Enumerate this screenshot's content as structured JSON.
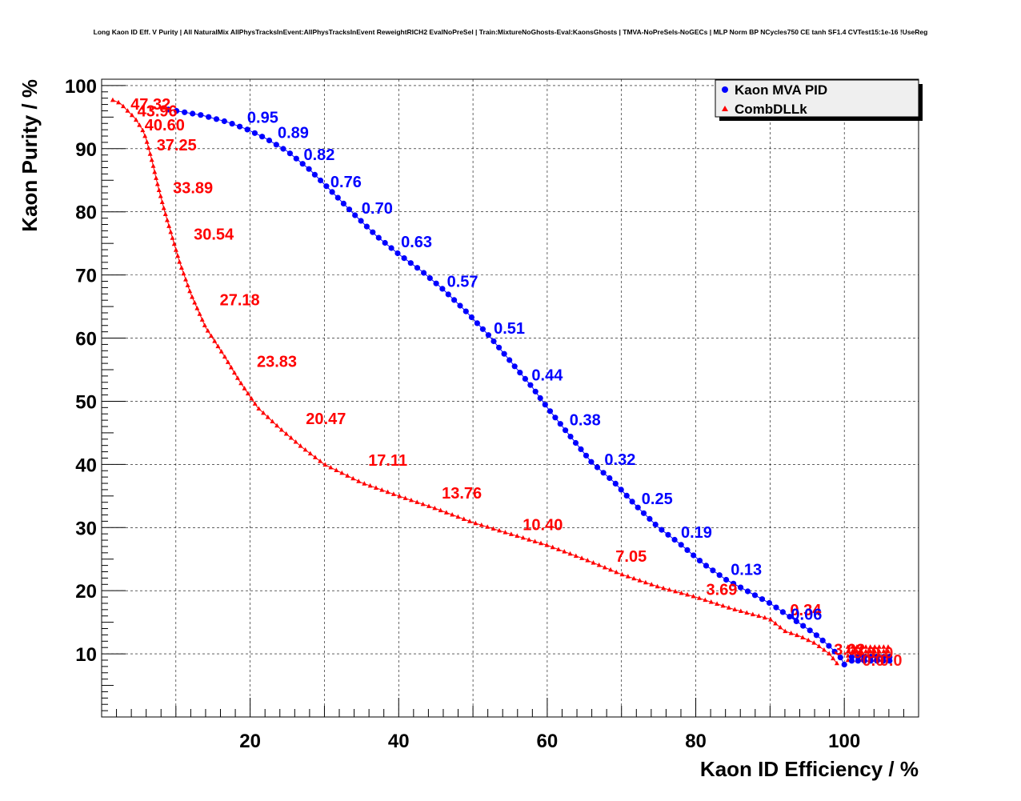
{
  "chart_data": {
    "type": "scatter",
    "title": "Long Kaon ID Eff. V Purity | All NaturalMix AllPhysTracksInEvent:AllPhysTracksInEvent ReweightRICH2 EvalNoPreSel | Train:MixtureNoGhosts-Eval:KaonsGhosts | TMVA-NoPreSels-NoGECs | MLP Norm BP NCycles750 CE tanh SF1.4 CVTest15:1e-16 !UseReg",
    "xlabel": "Kaon ID Efficiency / %",
    "ylabel": "Kaon Purity / %",
    "xlim": [
      0,
      110
    ],
    "ylim": [
      0,
      101
    ],
    "x_ticks": [
      "20",
      "40",
      "60",
      "80",
      "100"
    ],
    "x_tick_values": [
      20,
      40,
      60,
      80,
      100
    ],
    "y_ticks": [
      "10",
      "20",
      "30",
      "40",
      "50",
      "60",
      "70",
      "80",
      "90",
      "100"
    ],
    "y_tick_values": [
      10,
      20,
      30,
      40,
      50,
      60,
      70,
      80,
      90,
      100
    ],
    "grid": true,
    "legend_position": "top-right",
    "colors": {
      "mva": "#0000ff",
      "dll": "#ff0000",
      "frame": "#000000",
      "grid": "#000000"
    },
    "series": [
      {
        "name": "Kaon MVA PID",
        "marker": "circle",
        "curve": [
          [
            9,
            96.2
          ],
          [
            13.5,
            95.3
          ],
          [
            17,
            94.2
          ],
          [
            19.5,
            93.1
          ],
          [
            22,
            91.7
          ],
          [
            25,
            89.6
          ],
          [
            28,
            86.7
          ],
          [
            31,
            83.2
          ],
          [
            34,
            79.6
          ],
          [
            37,
            76.2
          ],
          [
            40,
            73.3
          ],
          [
            43,
            70.7
          ],
          [
            46,
            67.7
          ],
          [
            49,
            64.3
          ],
          [
            52,
            60.6
          ],
          [
            55,
            56.4
          ],
          [
            58,
            52.2
          ],
          [
            60,
            49
          ],
          [
            63,
            44.6
          ],
          [
            66,
            40.3
          ],
          [
            69,
            37.2
          ],
          [
            72,
            33.4
          ],
          [
            75,
            30
          ],
          [
            78,
            27.3
          ],
          [
            81,
            24.3
          ],
          [
            84,
            21.8
          ],
          [
            87,
            19.9
          ],
          [
            90,
            18
          ],
          [
            93,
            15.6
          ],
          [
            96,
            13.2
          ],
          [
            98,
            11.2
          ],
          [
            99.5,
            9.4
          ],
          [
            100,
            8.3
          ]
        ],
        "labels": [
          {
            "text": "0.95",
            "x": 19.6,
            "y": 95.0
          },
          {
            "text": "0.89",
            "x": 23.7,
            "y": 92.6
          },
          {
            "text": "0.82",
            "x": 27.2,
            "y": 89.1
          },
          {
            "text": "0.76",
            "x": 30.8,
            "y": 84.8
          },
          {
            "text": "0.70",
            "x": 35.0,
            "y": 80.6
          },
          {
            "text": "0.63",
            "x": 40.3,
            "y": 75.3
          },
          {
            "text": "0.57",
            "x": 46.5,
            "y": 69.0
          },
          {
            "text": "0.51",
            "x": 52.8,
            "y": 61.6
          },
          {
            "text": "0.44",
            "x": 57.9,
            "y": 54.2
          },
          {
            "text": "0.38",
            "x": 63.0,
            "y": 47.1
          },
          {
            "text": "0.32",
            "x": 67.7,
            "y": 40.8
          },
          {
            "text": "0.25",
            "x": 72.7,
            "y": 34.6
          },
          {
            "text": "0.19",
            "x": 78.0,
            "y": 29.3
          },
          {
            "text": "0.13",
            "x": 84.7,
            "y": 23.4
          },
          {
            "text": "0.06",
            "x": 92.8,
            "y": 16.3
          }
        ]
      },
      {
        "name": "CombDLLk",
        "marker": "triangle",
        "curve": [
          [
            1.5,
            97.7
          ],
          [
            2.5,
            97.2
          ],
          [
            3.5,
            96
          ],
          [
            4.5,
            94.8
          ],
          [
            5.5,
            93
          ],
          [
            6,
            91.5
          ],
          [
            6.8,
            88
          ],
          [
            7.6,
            84
          ],
          [
            8.5,
            80
          ],
          [
            9.5,
            76
          ],
          [
            10.5,
            72
          ],
          [
            12,
            67
          ],
          [
            14,
            61.7
          ],
          [
            16.5,
            57.2
          ],
          [
            18.5,
            53.3
          ],
          [
            21,
            49
          ],
          [
            24,
            45.7
          ],
          [
            27,
            42.7
          ],
          [
            30,
            40
          ],
          [
            35,
            37.1
          ],
          [
            40,
            35
          ],
          [
            45,
            33
          ],
          [
            50,
            30.8
          ],
          [
            55,
            29
          ],
          [
            60,
            27.2
          ],
          [
            65,
            25
          ],
          [
            70,
            22.6
          ],
          [
            75,
            20.6
          ],
          [
            80,
            19
          ],
          [
            85,
            17.1
          ],
          [
            90,
            15.5
          ],
          [
            92,
            13.6
          ],
          [
            94,
            12.8
          ],
          [
            96,
            11.7
          ],
          [
            98,
            10
          ],
          [
            99,
            8.5
          ]
        ],
        "labels": [
          {
            "text": "47.32",
            "x": 3.9,
            "y": 97.1
          },
          {
            "text": "43.96",
            "x": 4.8,
            "y": 96.0
          },
          {
            "text": "40.60",
            "x": 5.8,
            "y": 93.8
          },
          {
            "text": "37.25",
            "x": 7.4,
            "y": 90.6
          },
          {
            "text": "33.89",
            "x": 9.6,
            "y": 83.8
          },
          {
            "text": "30.54",
            "x": 12.4,
            "y": 76.5
          },
          {
            "text": "27.18",
            "x": 15.9,
            "y": 66.1
          },
          {
            "text": "23.83",
            "x": 20.9,
            "y": 56.3
          },
          {
            "text": "20.47",
            "x": 27.5,
            "y": 47.3
          },
          {
            "text": "17.11",
            "x": 35.9,
            "y": 40.7
          },
          {
            "text": "13.76",
            "x": 45.8,
            "y": 35.5
          },
          {
            "text": "10.40",
            "x": 56.7,
            "y": 30.5
          },
          {
            "text": "7.05",
            "x": 69.2,
            "y": 25.5
          },
          {
            "text": "3.69",
            "x": 81.4,
            "y": 20.2
          },
          {
            "text": "0.34",
            "x": 92.7,
            "y": 17.0
          },
          {
            "text": "3.02",
            "x": 98.6,
            "y": 10.7
          }
        ]
      }
    ],
    "endcluster_color_note": "overlapping labels near x=100-106 are unreadable"
  }
}
